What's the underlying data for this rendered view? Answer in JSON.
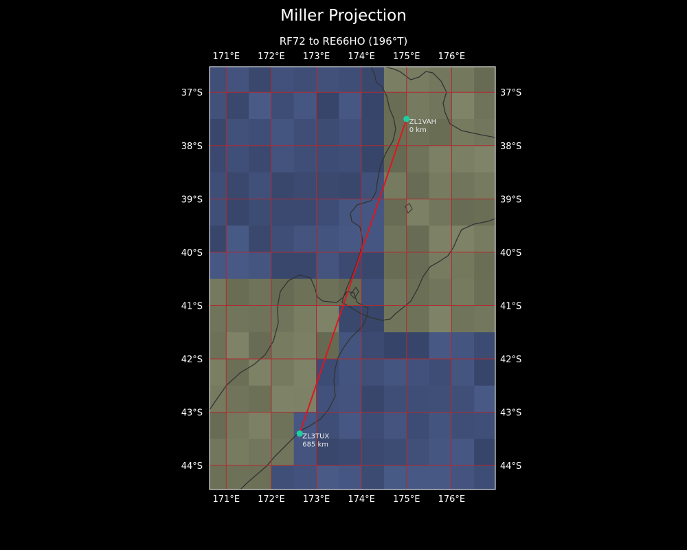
{
  "title": "Miller Projection",
  "subtitle": "RF72 to RE66HO (196°T)",
  "map": {
    "extent": {
      "lon": [
        170.63,
        176.97
      ],
      "lat": [
        -36.52,
        -44.45
      ]
    },
    "lon_ticks": [
      171,
      172,
      173,
      174,
      175,
      176
    ],
    "lon_tick_labels": [
      "171°E",
      "172°E",
      "173°E",
      "174°E",
      "175°E",
      "176°E"
    ],
    "lat_ticks": [
      -37,
      -38,
      -39,
      -40,
      -41,
      -42,
      -43,
      -44
    ],
    "lat_tick_labels": [
      "37°S",
      "38°S",
      "39°S",
      "40°S",
      "41°S",
      "42°S",
      "43°S",
      "44°S"
    ],
    "colors": {
      "background": "#000000",
      "grid": "#b02a30",
      "path": "#e0161e",
      "marker": "#1ecfa0",
      "coastline": "#333333",
      "ocean_tile": "#3f5570",
      "land_tile": "#6b705c"
    },
    "markers": [
      {
        "call": "ZL1VAH",
        "distance": "0 km",
        "lon": 175.0,
        "lat": -37.5
      },
      {
        "call": "ZL3TUX",
        "distance": "685 km",
        "lon": 172.63,
        "lat": -43.4
      }
    ]
  }
}
